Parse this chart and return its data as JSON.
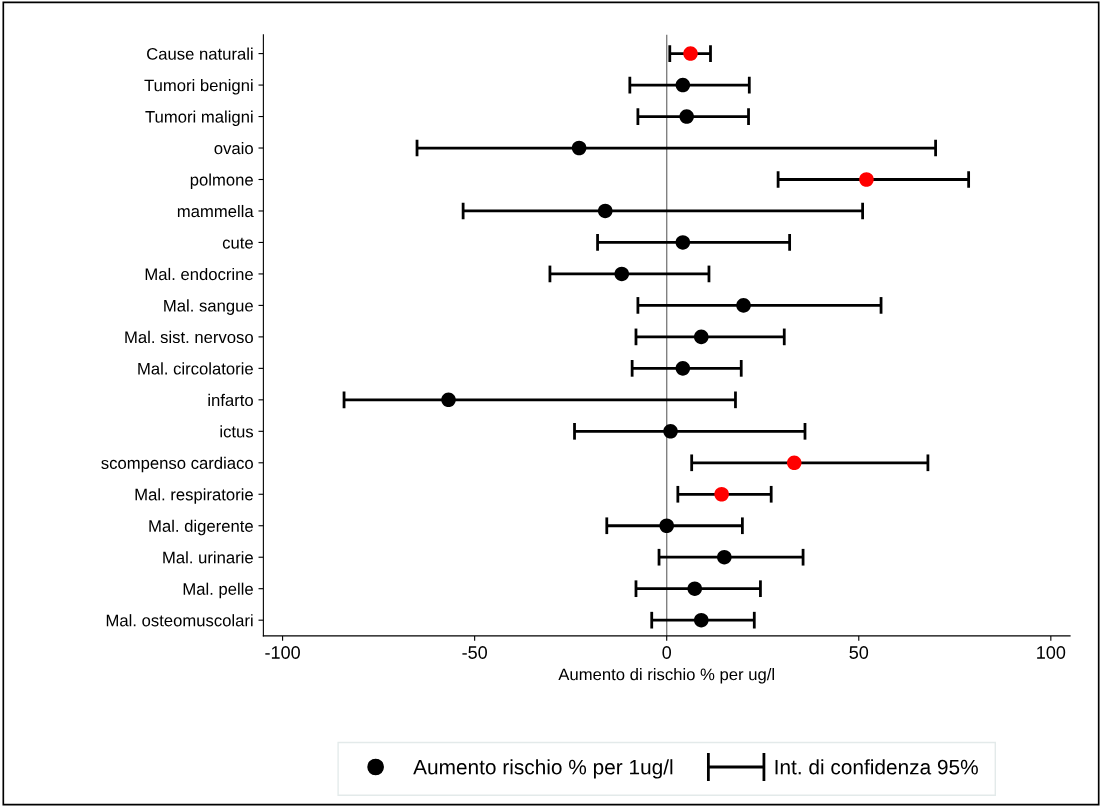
{
  "chart_data": {
    "type": "scatter",
    "orientation": "horizontal",
    "categories": [
      "Cause naturali",
      "Tumori benigni",
      "Tumori maligni",
      "ovaio",
      "polmone",
      "mammella",
      "cute",
      "Mal. endocrine",
      "Mal. sangue",
      "Mal. sist. nervoso",
      "Mal. circolatorie",
      "infarto",
      "ictus",
      "scompenso cardiaco",
      "Mal. respiratorie",
      "Mal. digerente",
      "Mal. urinarie",
      "Mal. pelle",
      "Mal. osteomuscolari"
    ],
    "series": [
      {
        "name": "Aumento rischio % per 1ug/l",
        "color": "#000000",
        "colors": [
          "#ff0000",
          "#000000",
          "#000000",
          "#000000",
          "#ff0000",
          "#000000",
          "#000000",
          "#000000",
          "#000000",
          "#000000",
          "#000000",
          "#000000",
          "#000000",
          "#ff0000",
          "#ff0000",
          "#000000",
          "#000000",
          "#000000",
          "#000000"
        ],
        "values": [
          6.2,
          4.2,
          5.2,
          -22.8,
          52,
          -16,
          4.2,
          -11.7,
          20,
          9,
          4.2,
          -56.8,
          1,
          33.2,
          14.3,
          0,
          15,
          7.3,
          9
        ],
        "errors": [
          [
            0.8,
            11.4
          ],
          [
            -9.6,
            21.5
          ],
          [
            -7.5,
            21.3
          ],
          [
            -65,
            70
          ],
          [
            29,
            78.6
          ],
          [
            -53,
            51
          ],
          [
            -18,
            32
          ],
          [
            -30.4,
            11
          ],
          [
            -7.5,
            55.8
          ],
          [
            -8,
            30.6
          ],
          [
            -9,
            19.4
          ],
          [
            -84,
            17.9
          ],
          [
            -24,
            36
          ],
          [
            6.5,
            68
          ],
          [
            2.9,
            27.2
          ],
          [
            -15.6,
            19.7
          ],
          [
            -2,
            35.5
          ],
          [
            -8,
            24.4
          ],
          [
            -3.9,
            22.8
          ]
        ]
      }
    ],
    "xlim": [
      -105,
      105
    ],
    "xticks": [
      -100,
      -50,
      0,
      50,
      100
    ],
    "xlabel": "Aumento di rischio % per ug/l",
    "ref_lines": [
      {
        "axis": "x",
        "value": 0,
        "color": "#808080"
      }
    ],
    "annotations": [
      "Int. di confidenza 95%"
    ],
    "marker": "circle",
    "grid": false,
    "legend": "bottom"
  }
}
